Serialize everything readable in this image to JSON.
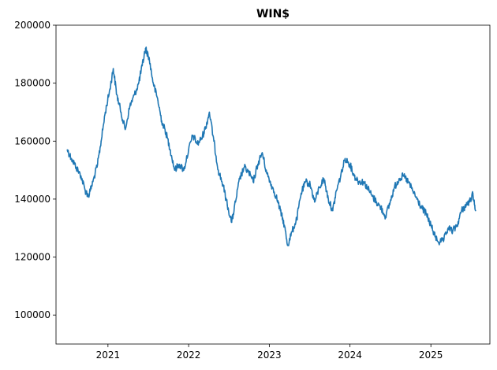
{
  "chart_data": {
    "type": "line",
    "title": "WIN$",
    "xlabel": "",
    "ylabel": "",
    "xlim": [
      "2020-05-11",
      "2025-09-25"
    ],
    "ylim": [
      90000,
      200000
    ],
    "x_ticks": [
      "2021",
      "2022",
      "2023",
      "2024",
      "2025"
    ],
    "y_ticks": [
      100000,
      120000,
      140000,
      160000,
      180000,
      200000
    ],
    "grid": false,
    "series": [
      {
        "name": "",
        "color": "#1f77b4",
        "x": [
          "2020-07-01",
          "2020-07-20",
          "2020-08-10",
          "2020-09-01",
          "2020-09-20",
          "2020-10-05",
          "2020-10-25",
          "2020-11-15",
          "2020-12-01",
          "2020-12-20",
          "2021-01-10",
          "2021-01-25",
          "2021-02-10",
          "2021-03-01",
          "2021-03-20",
          "2021-04-10",
          "2021-05-01",
          "2021-05-20",
          "2021-06-05",
          "2021-06-20",
          "2021-07-05",
          "2021-07-25",
          "2021-08-15",
          "2021-09-01",
          "2021-09-20",
          "2021-10-10",
          "2021-10-30",
          "2021-11-20",
          "2021-12-10",
          "2022-01-01",
          "2022-01-20",
          "2022-02-10",
          "2022-03-01",
          "2022-03-20",
          "2022-04-05",
          "2022-04-25",
          "2022-05-15",
          "2022-06-05",
          "2022-06-25",
          "2022-07-15",
          "2022-08-01",
          "2022-08-20",
          "2022-09-10",
          "2022-10-01",
          "2022-10-20",
          "2022-11-10",
          "2022-11-30",
          "2022-12-20",
          "2023-01-10",
          "2023-02-01",
          "2023-02-20",
          "2023-03-10",
          "2023-03-25",
          "2023-04-15",
          "2023-05-05",
          "2023-05-25",
          "2023-06-15",
          "2023-07-05",
          "2023-07-25",
          "2023-08-15",
          "2023-09-05",
          "2023-09-25",
          "2023-10-15",
          "2023-11-01",
          "2023-11-20",
          "2023-12-10",
          "2024-01-01",
          "2024-01-20",
          "2024-02-10",
          "2024-03-01",
          "2024-03-20",
          "2024-04-10",
          "2024-04-30",
          "2024-05-20",
          "2024-06-10",
          "2024-07-01",
          "2024-07-20",
          "2024-08-10",
          "2024-08-30",
          "2024-09-20",
          "2024-10-10",
          "2024-10-30",
          "2024-11-20",
          "2024-12-10",
          "2025-01-01",
          "2025-01-20",
          "2025-02-10",
          "2025-03-01",
          "2025-03-20",
          "2025-04-10",
          "2025-04-30",
          "2025-05-20",
          "2025-06-10",
          "2025-06-25",
          "2025-07-10",
          "2025-07-22"
        ],
        "y": [
          157000,
          154000,
          151000,
          148000,
          143000,
          141000,
          146000,
          152000,
          160000,
          170000,
          178000,
          185000,
          176000,
          170000,
          164000,
          172000,
          176000,
          180000,
          186000,
          192000,
          189000,
          180000,
          174000,
          167000,
          163000,
          157000,
          150000,
          152000,
          150000,
          157000,
          162000,
          159000,
          161000,
          165000,
          170000,
          160000,
          150000,
          145000,
          138000,
          132000,
          139000,
          147000,
          151000,
          149000,
          146000,
          152000,
          156000,
          149000,
          145000,
          141000,
          136000,
          131000,
          124000,
          129000,
          133000,
          142000,
          146000,
          145000,
          139000,
          144000,
          147000,
          140000,
          136000,
          143000,
          148000,
          154000,
          152000,
          148000,
          146000,
          146000,
          144000,
          141000,
          139000,
          137000,
          134000,
          139000,
          144000,
          147000,
          148000,
          146000,
          143000,
          140000,
          137000,
          135000,
          131000,
          127000,
          125000,
          126000,
          130000,
          129000,
          131000,
          136000,
          138000,
          139000,
          142000,
          136000
        ]
      }
    ]
  }
}
